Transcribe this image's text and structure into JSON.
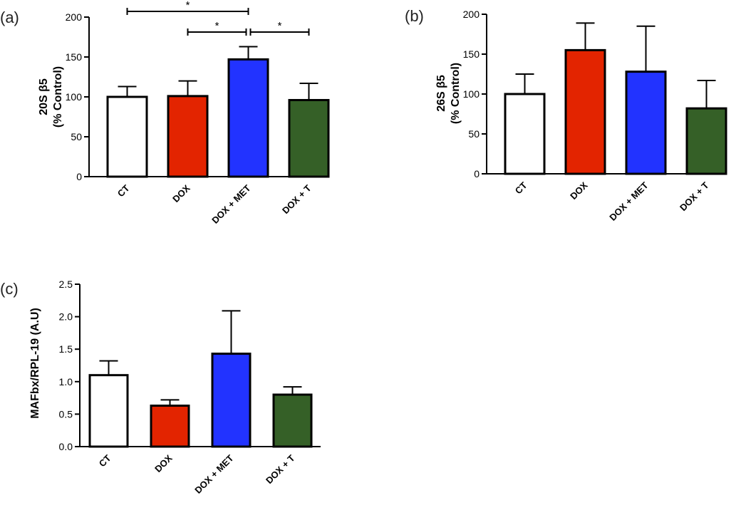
{
  "chart_data": [
    {
      "panel_label": "(a)",
      "type": "bar",
      "categories": [
        "CT",
        "DOX",
        "DOX + MET",
        "DOX + T"
      ],
      "values": [
        100,
        101,
        147,
        96
      ],
      "errors": [
        13,
        19,
        16,
        21
      ],
      "colors": [
        "#ffffff",
        "#e32400",
        "#2233ff",
        "#356027"
      ],
      "ylabel_lines": [
        "20S β5",
        "(% Control)"
      ],
      "ylim": [
        0,
        200
      ],
      "ticks": [
        0,
        50,
        100,
        150,
        200
      ],
      "tick_labels": [
        "0",
        "50",
        "100",
        "150",
        "200"
      ],
      "significance": [
        {
          "from": 0,
          "to": 2,
          "level": 0,
          "label": "*"
        },
        {
          "from": 1,
          "to": 2,
          "level": 1,
          "label": "*"
        },
        {
          "from": 2,
          "to": 3,
          "level": 1,
          "label": "*"
        }
      ]
    },
    {
      "panel_label": "(b)",
      "type": "bar",
      "categories": [
        "CT",
        "DOX",
        "DOX + MET",
        "DOX + T"
      ],
      "values": [
        100,
        155,
        128,
        82
      ],
      "errors": [
        25,
        34,
        57,
        35
      ],
      "colors": [
        "#ffffff",
        "#e32400",
        "#2233ff",
        "#356027"
      ],
      "ylabel_lines": [
        "26S β5",
        "(% Control)"
      ],
      "ylim": [
        0,
        200
      ],
      "ticks": [
        0,
        50,
        100,
        150,
        200
      ],
      "tick_labels": [
        "0",
        "50",
        "100",
        "150",
        "200"
      ],
      "significance": []
    },
    {
      "panel_label": "(c)",
      "type": "bar",
      "categories": [
        "CT",
        "DOX",
        "DOX + MET",
        "DOX + T"
      ],
      "values": [
        1.1,
        0.63,
        1.43,
        0.8
      ],
      "errors": [
        0.22,
        0.09,
        0.66,
        0.12
      ],
      "colors": [
        "#ffffff",
        "#e32400",
        "#2233ff",
        "#356027"
      ],
      "ylabel_lines": [
        "MAFbx/RPL-19 (A.U)"
      ],
      "ylim": [
        0,
        2.5
      ],
      "ticks": [
        0,
        0.5,
        1.0,
        1.5,
        2.0,
        2.5
      ],
      "tick_labels": [
        "0.0",
        "0.5",
        "1.0",
        "1.5",
        "2.0",
        "2.5"
      ],
      "significance": []
    }
  ]
}
